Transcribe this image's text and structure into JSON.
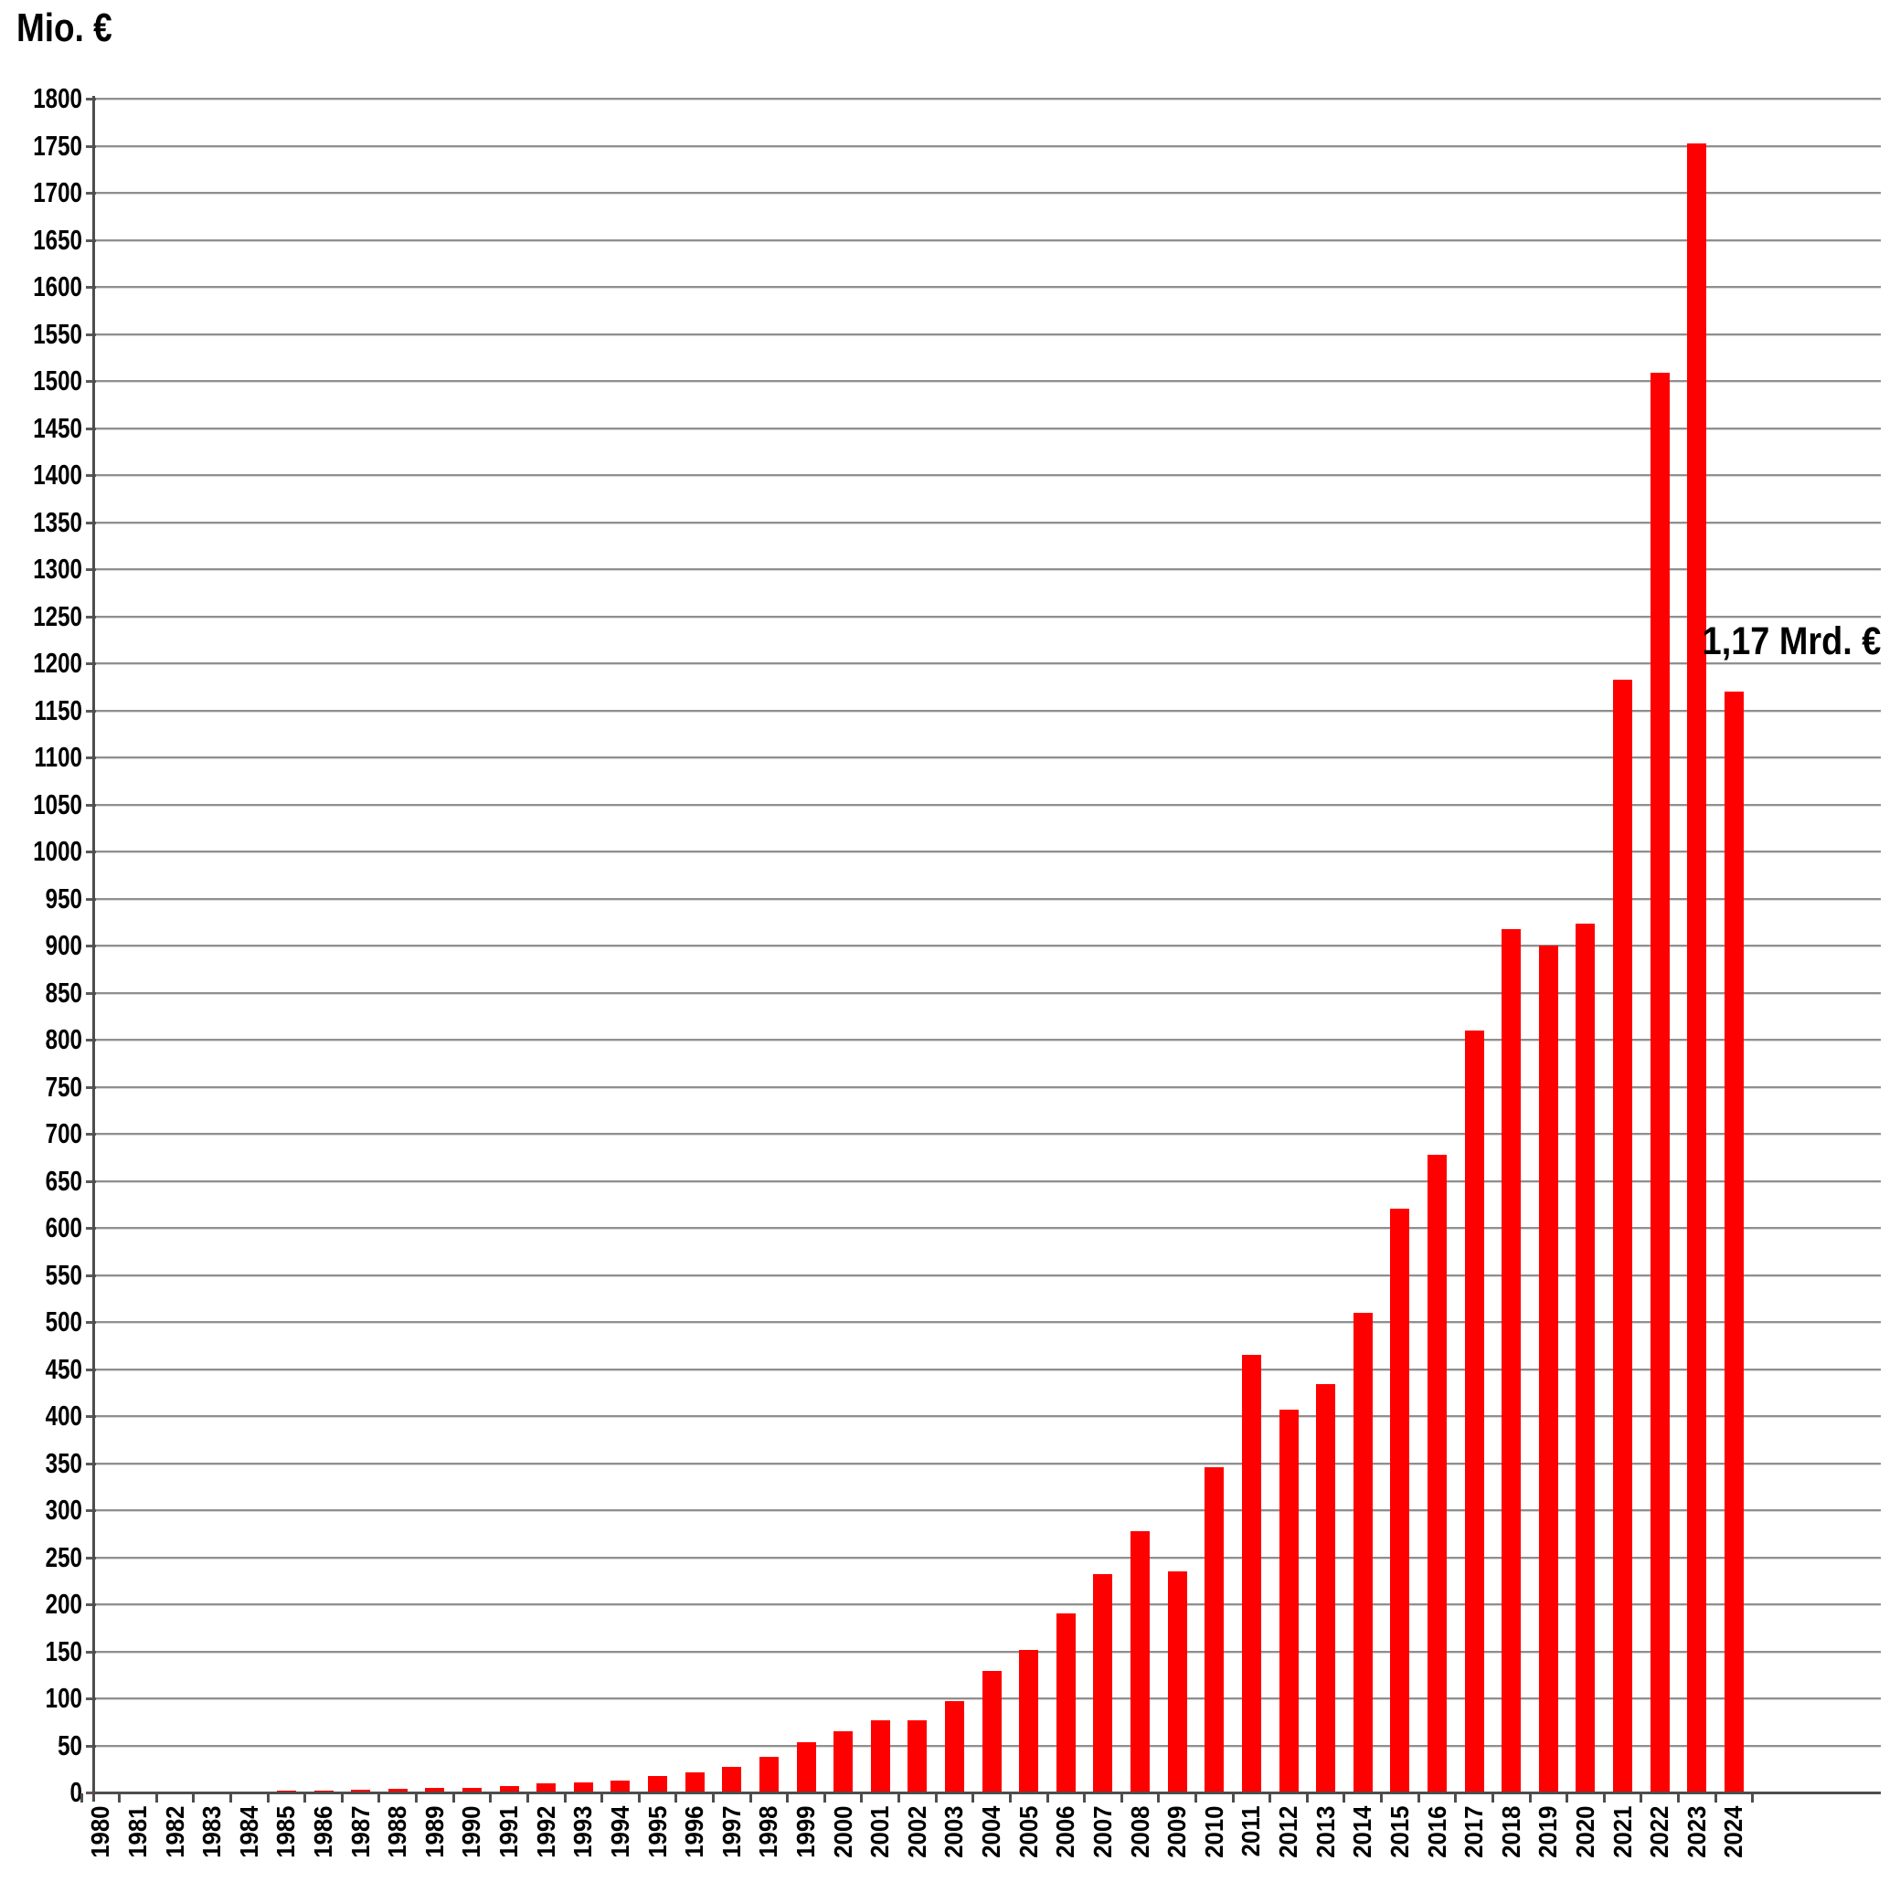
{
  "title": "Mio. €",
  "annotation": {
    "text": "1,17 Mrd. €"
  },
  "chart_data": {
    "type": "bar",
    "title": "Mio. €",
    "xlabel": "",
    "ylabel": "Mio. €",
    "categories": [
      "1980",
      "1981",
      "1982",
      "1983",
      "1984",
      "1985",
      "1986",
      "1987",
      "1988",
      "1989",
      "1990",
      "1991",
      "1992",
      "1993",
      "1994",
      "1995",
      "1996",
      "1997",
      "1998",
      "1999",
      "2000",
      "2001",
      "2002",
      "2003",
      "2004",
      "2005",
      "2006",
      "2007",
      "2008",
      "2009",
      "2010",
      "2011",
      "2012",
      "2013",
      "2014",
      "2015",
      "2016",
      "2017",
      "2018",
      "2019",
      "2020",
      "2021",
      "2022",
      "2023",
      "2024"
    ],
    "values": [
      0.3,
      0.4,
      0.8,
      1,
      1.2,
      1.5,
      2,
      2.5,
      3.5,
      4.5,
      5,
      7,
      10,
      11,
      12.5,
      17,
      21,
      27,
      38,
      53,
      65,
      77,
      77,
      97,
      129,
      151,
      190,
      232,
      278,
      235,
      346,
      465,
      407,
      434,
      510,
      620,
      678,
      810,
      917,
      900,
      923,
      1183,
      1509,
      1752,
      1170
    ],
    "ylim": [
      0,
      1800
    ],
    "ytick_step": 50,
    "grid": true,
    "legend": "none",
    "annotation": {
      "text": "1,17 Mrd. €",
      "target_category": "2024",
      "value_mio": 1170
    },
    "colors": {
      "bar": "#fe0000",
      "gridline": "#8f8f8f",
      "gridline_light": "#d9d9d9",
      "axis": "#4d4d4d",
      "text": "#000000"
    }
  }
}
